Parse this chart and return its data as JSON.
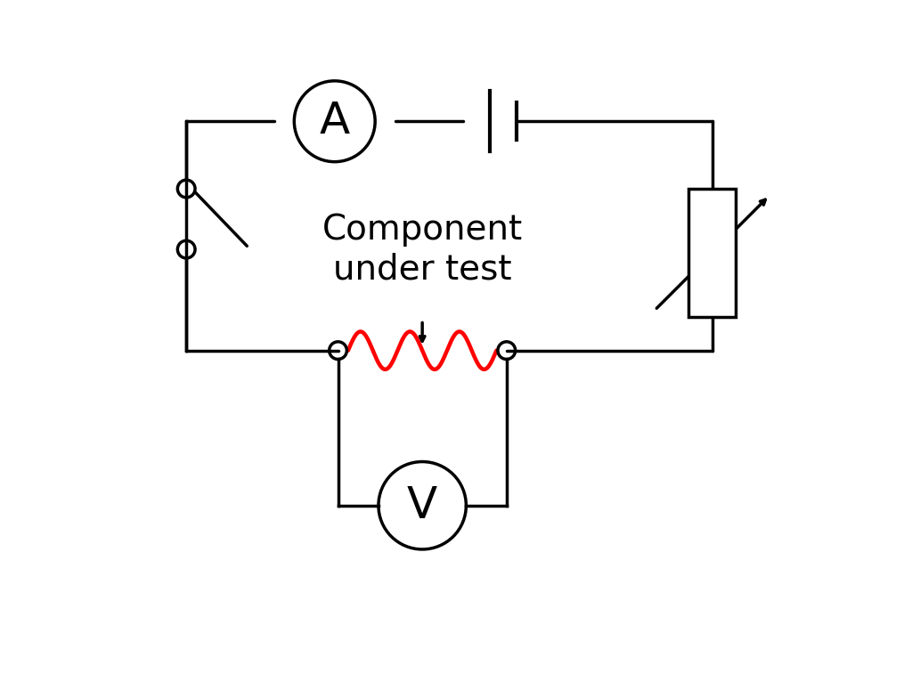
{
  "bg_color": "#ffffff",
  "line_color": "#000000",
  "resistor_wave_color": "#ff0000",
  "line_width": 2.5,
  "text_label": "Component\nunder test",
  "text_fontsize": 28,
  "ammeter_label": "A",
  "voltmeter_label": "V",
  "meter_fontsize": 36,
  "figsize": [
    10.24,
    7.57
  ],
  "dpi": 100
}
